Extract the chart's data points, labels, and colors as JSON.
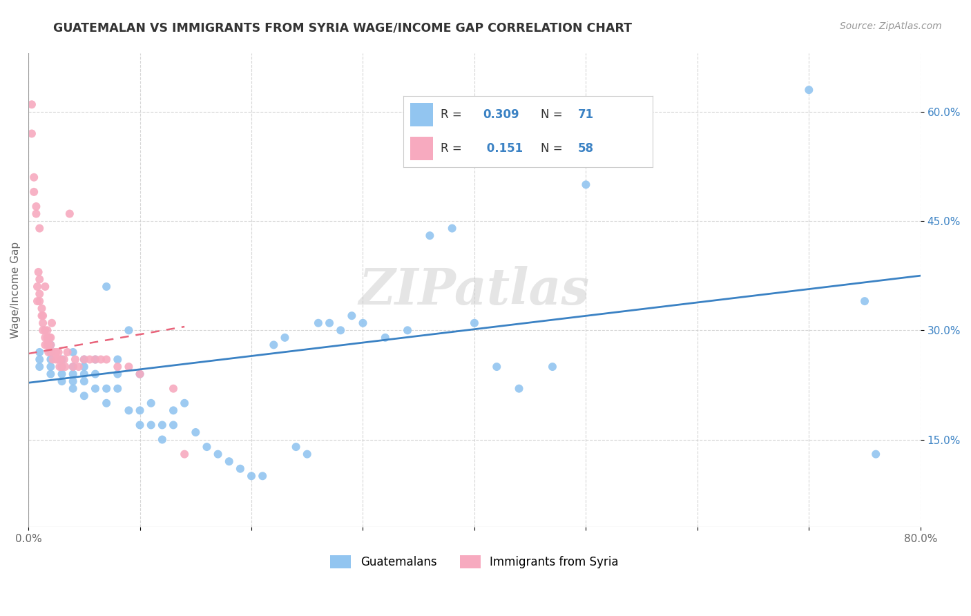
{
  "title": "GUATEMALAN VS IMMIGRANTS FROM SYRIA WAGE/INCOME GAP CORRELATION CHART",
  "source": "Source: ZipAtlas.com",
  "ylabel": "Wage/Income Gap",
  "xlim": [
    0.0,
    0.8
  ],
  "ylim": [
    0.03,
    0.68
  ],
  "xticks": [
    0.0,
    0.1,
    0.2,
    0.3,
    0.4,
    0.5,
    0.6,
    0.7,
    0.8
  ],
  "xtick_labels": [
    "0.0%",
    "",
    "",
    "",
    "",
    "",
    "",
    "",
    "80.0%"
  ],
  "yticks": [
    0.15,
    0.3,
    0.45,
    0.6
  ],
  "ytick_labels": [
    "15.0%",
    "30.0%",
    "45.0%",
    "60.0%"
  ],
  "blue_color": "#92C5F0",
  "pink_color": "#F7AABF",
  "blue_line_color": "#3B82C4",
  "pink_line_color": "#E8637A",
  "legend_r_color": "#3B82C4",
  "blue_R": "0.309",
  "blue_N": "71",
  "pink_R": "0.151",
  "pink_N": "58",
  "watermark": "ZIPatlas",
  "blue_scatter_x": [
    0.01,
    0.01,
    0.01,
    0.02,
    0.02,
    0.02,
    0.02,
    0.02,
    0.03,
    0.03,
    0.03,
    0.03,
    0.04,
    0.04,
    0.04,
    0.04,
    0.04,
    0.05,
    0.05,
    0.05,
    0.05,
    0.05,
    0.06,
    0.06,
    0.06,
    0.07,
    0.07,
    0.07,
    0.08,
    0.08,
    0.08,
    0.09,
    0.09,
    0.1,
    0.1,
    0.1,
    0.11,
    0.11,
    0.12,
    0.12,
    0.13,
    0.13,
    0.14,
    0.15,
    0.16,
    0.17,
    0.18,
    0.19,
    0.2,
    0.21,
    0.22,
    0.23,
    0.24,
    0.25,
    0.26,
    0.27,
    0.28,
    0.29,
    0.3,
    0.32,
    0.34,
    0.36,
    0.38,
    0.4,
    0.42,
    0.44,
    0.47,
    0.5,
    0.7,
    0.75,
    0.76
  ],
  "blue_scatter_y": [
    0.25,
    0.26,
    0.27,
    0.24,
    0.25,
    0.26,
    0.27,
    0.28,
    0.23,
    0.24,
    0.25,
    0.26,
    0.22,
    0.23,
    0.24,
    0.25,
    0.27,
    0.21,
    0.23,
    0.24,
    0.25,
    0.26,
    0.22,
    0.24,
    0.26,
    0.2,
    0.22,
    0.36,
    0.22,
    0.24,
    0.26,
    0.19,
    0.3,
    0.17,
    0.19,
    0.24,
    0.17,
    0.2,
    0.15,
    0.17,
    0.17,
    0.19,
    0.2,
    0.16,
    0.14,
    0.13,
    0.12,
    0.11,
    0.1,
    0.1,
    0.28,
    0.29,
    0.14,
    0.13,
    0.31,
    0.31,
    0.3,
    0.32,
    0.31,
    0.29,
    0.3,
    0.43,
    0.44,
    0.31,
    0.25,
    0.22,
    0.25,
    0.5,
    0.63,
    0.34,
    0.13
  ],
  "pink_scatter_x": [
    0.003,
    0.003,
    0.005,
    0.005,
    0.007,
    0.007,
    0.008,
    0.008,
    0.009,
    0.01,
    0.01,
    0.01,
    0.01,
    0.012,
    0.012,
    0.013,
    0.013,
    0.013,
    0.015,
    0.015,
    0.015,
    0.015,
    0.017,
    0.017,
    0.017,
    0.018,
    0.018,
    0.019,
    0.02,
    0.02,
    0.02,
    0.021,
    0.022,
    0.023,
    0.025,
    0.025,
    0.027,
    0.027,
    0.028,
    0.029,
    0.03,
    0.032,
    0.033,
    0.035,
    0.037,
    0.04,
    0.042,
    0.045,
    0.05,
    0.055,
    0.06,
    0.065,
    0.07,
    0.08,
    0.09,
    0.1,
    0.13,
    0.14
  ],
  "pink_scatter_y": [
    0.57,
    0.61,
    0.49,
    0.51,
    0.46,
    0.47,
    0.34,
    0.36,
    0.38,
    0.34,
    0.35,
    0.37,
    0.44,
    0.32,
    0.33,
    0.3,
    0.31,
    0.32,
    0.28,
    0.29,
    0.3,
    0.36,
    0.28,
    0.29,
    0.3,
    0.27,
    0.28,
    0.29,
    0.27,
    0.28,
    0.29,
    0.31,
    0.26,
    0.27,
    0.26,
    0.27,
    0.26,
    0.27,
    0.25,
    0.26,
    0.25,
    0.26,
    0.25,
    0.27,
    0.46,
    0.25,
    0.26,
    0.25,
    0.26,
    0.26,
    0.26,
    0.26,
    0.26,
    0.25,
    0.25,
    0.24,
    0.22,
    0.13
  ],
  "blue_trend_x": [
    0.0,
    0.8
  ],
  "blue_trend_y": [
    0.228,
    0.375
  ],
  "pink_trend_x": [
    0.0,
    0.14
  ],
  "pink_trend_y": [
    0.268,
    0.305
  ]
}
